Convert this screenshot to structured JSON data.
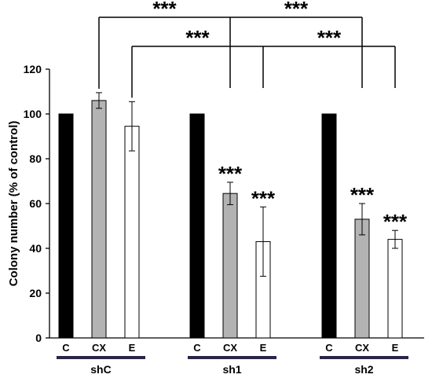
{
  "chart_data": {
    "type": "bar",
    "ylabel": "Colony number (% of control)",
    "xlabel": "",
    "ylim": [
      0,
      120
    ],
    "yticks": [
      0,
      20,
      40,
      60,
      80,
      100,
      120
    ],
    "grid": false,
    "legend": "none",
    "groups": [
      {
        "name": "shC",
        "bars": [
          {
            "label": "C",
            "value": 100,
            "error": 0,
            "fill": "#000000",
            "significance": ""
          },
          {
            "label": "CX",
            "value": 106,
            "error": 3.5,
            "fill": "#b3b3b3",
            "significance": ""
          },
          {
            "label": "E",
            "value": 94.5,
            "error": 11,
            "fill": "#ffffff",
            "significance": ""
          }
        ]
      },
      {
        "name": "sh1",
        "bars": [
          {
            "label": "C",
            "value": 100,
            "error": 0,
            "fill": "#000000",
            "significance": ""
          },
          {
            "label": "CX",
            "value": 64.5,
            "error": 5,
            "fill": "#b3b3b3",
            "significance": "***"
          },
          {
            "label": "E",
            "value": 43,
            "error": 15.5,
            "fill": "#ffffff",
            "significance": "***"
          }
        ]
      },
      {
        "name": "sh2",
        "bars": [
          {
            "label": "C",
            "value": 100,
            "error": 0,
            "fill": "#000000",
            "significance": ""
          },
          {
            "label": "CX",
            "value": 53,
            "error": 7,
            "fill": "#b3b3b3",
            "significance": "***"
          },
          {
            "label": "E",
            "value": 44,
            "error": 4,
            "fill": "#ffffff",
            "significance": "***"
          }
        ]
      }
    ],
    "comparison_brackets": [
      {
        "from": "shC.CX",
        "to": [
          "sh1.CX",
          "sh2.CX"
        ],
        "labels": [
          "***",
          "***"
        ]
      },
      {
        "from": "shC.E",
        "to": [
          "sh1.E",
          "sh2.E"
        ],
        "labels": [
          "***",
          "***"
        ]
      }
    ],
    "group_underline_color": "#2b2546"
  }
}
